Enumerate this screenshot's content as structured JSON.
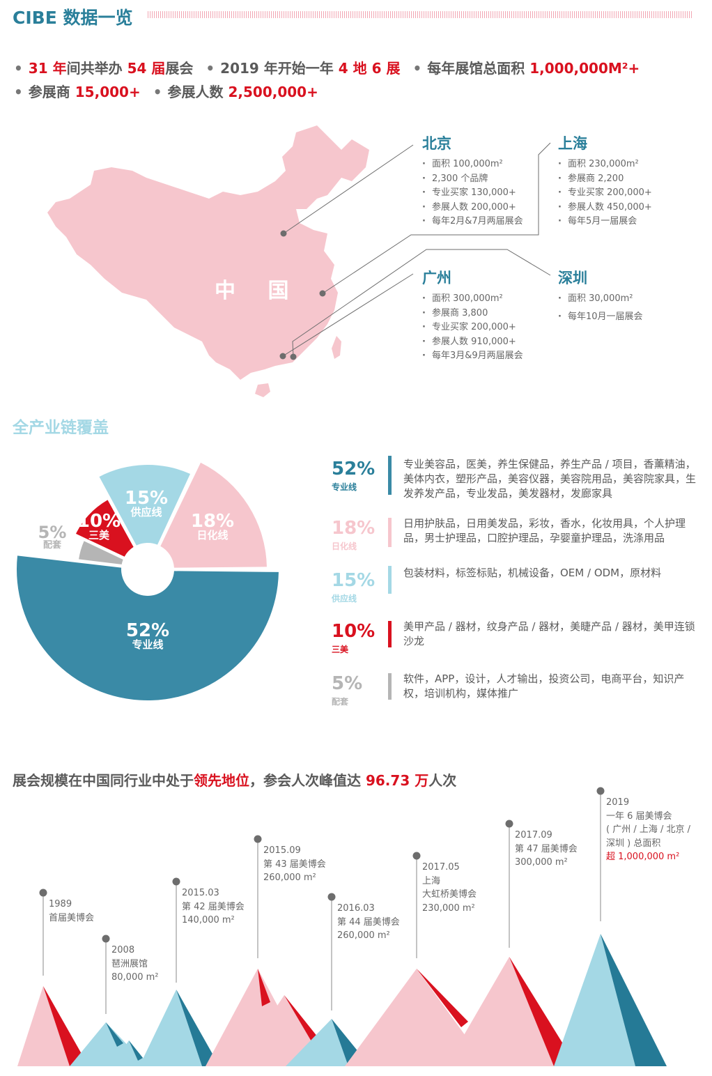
{
  "header": {
    "title": "CIBE 数据一览"
  },
  "colors": {
    "teal": "#2a7f9a",
    "pro": "#3a8aa6",
    "pink": "#f6c6cd",
    "lightblue": "#a4d8e5",
    "red": "#d9111f",
    "gray": "#b5b5b5",
    "darkteal": "#257a96"
  },
  "stats": {
    "line1": [
      [
        {
          "t": "31 年",
          "red": true
        },
        {
          "t": "间共举办 "
        },
        {
          "t": "54 届",
          "red": true
        },
        {
          "t": "展会"
        }
      ],
      [
        {
          "t": "2019 年开始一年 "
        },
        {
          "t": "4 地 6 展",
          "red": true
        }
      ],
      [
        {
          "t": "每年展馆总面积 "
        },
        {
          "t": "1,000,000M²+",
          "red": true
        }
      ]
    ],
    "line2": [
      [
        {
          "t": "参展商 "
        },
        {
          "t": "15,000+",
          "red": true
        }
      ],
      [
        {
          "t": "参展人数 "
        },
        {
          "t": "2,500,000+",
          "red": true
        }
      ]
    ]
  },
  "map": {
    "country_label": "中 国",
    "cities": [
      {
        "name": "北京",
        "items": [
          "面积 100,000m²",
          "2,300 个品牌",
          "专业买家 130,000+",
          "参展人数 200,000+",
          "每年2月&7月两届展会"
        ]
      },
      {
        "name": "上海",
        "items": [
          "面积 230,000m²",
          "参展商 2,200",
          "专业买家 200,000+",
          "参展人数 450,000+",
          "每年5月一届展会"
        ]
      },
      {
        "name": "广州",
        "items": [
          "面积 300,000m²",
          "参展商 3,800",
          "专业买家 200,000+",
          "参展人数 910,000+",
          "每年3月&9月两届展会"
        ]
      },
      {
        "name": "深圳",
        "items": [
          "面积 30,000m²",
          "每年10月一届展会"
        ]
      }
    ]
  },
  "section2": {
    "title": "全产业链覆盖"
  },
  "chart_data": {
    "type": "pie",
    "title": "",
    "slices": [
      {
        "name": "专业线",
        "value": 52,
        "label": "52%",
        "color": "#3a8aa6",
        "desc": "专业美容品，医美，养生保健品，养生产品 / 项目，香薰精油，美体内衣，塑形产品，美容仪器，美容院用品，美容院家具，生发养发产品，专业发品，美发器材，发廊家具"
      },
      {
        "name": "配套",
        "value": 5,
        "label": "5%",
        "color": "#b5b5b5",
        "desc": "软件，APP，设计，人才输出，投资公司，电商平台，知识产权，培训机构，媒体推广"
      },
      {
        "name": "三美",
        "value": 10,
        "label": "10%",
        "color": "#d9111f",
        "desc": "美甲产品 / 器材，纹身产品 / 器材，美睫产品 / 器材，美甲连锁沙龙"
      },
      {
        "name": "供应线",
        "value": 15,
        "label": "15%",
        "color": "#a4d8e5",
        "desc": "包装材料，标签标贴，机械设备，OEM / ODM，原材料"
      },
      {
        "name": "日化线",
        "value": 18,
        "label": "18%",
        "color": "#f6c6cd",
        "desc": "日用护肤品，日用美发品，彩妆，香水，化妆用具，个人护理品，男士护理品，口腔护理品，孕婴童护理品，洗涤用品"
      }
    ],
    "legend_order": [
      0,
      4,
      3,
      2,
      1
    ]
  },
  "section3": {
    "title": [
      {
        "t": "展会规模在中国同行业中处于"
      },
      {
        "t": "领先地位",
        "red": true
      },
      {
        "t": "，参会人次峰值达 "
      },
      {
        "t": "96.73 万",
        "red": true
      },
      {
        "t": "人次"
      }
    ]
  },
  "timeline": [
    {
      "lines": [
        {
          "t": "1989"
        },
        {
          "t": "首届美博会"
        }
      ]
    },
    {
      "lines": [
        {
          "t": "2008"
        },
        {
          "t": "琶洲展馆"
        },
        {
          "t": "80,000 m²"
        }
      ]
    },
    {
      "lines": [
        {
          "t": "2015.03"
        },
        {
          "t": "第 42 届美博会"
        },
        {
          "t": "140,000 m²"
        }
      ]
    },
    {
      "lines": [
        {
          "t": "2015.09"
        },
        {
          "t": "第 43 届美博会"
        },
        {
          "t": "260,000 m²"
        }
      ]
    },
    {
      "lines": [
        {
          "t": "2016.03"
        },
        {
          "t": "第 44 届美博会"
        },
        {
          "t": "260,000 m²"
        }
      ]
    },
    {
      "lines": [
        {
          "t": "2017.05"
        },
        {
          "t": "上海"
        },
        {
          "t": "大虹桥美博会"
        },
        {
          "t": "230,000 m²"
        }
      ]
    },
    {
      "lines": [
        {
          "t": "2017.09"
        },
        {
          "t": "第 47 届美博会"
        },
        {
          "t": "300,000 m²"
        }
      ]
    },
    {
      "lines": [
        {
          "t": "2019"
        },
        {
          "t": "一年 6 届美博会"
        },
        {
          "t": "( 广州 / 上海 / 北京 /"
        },
        {
          "t": "深圳 ) 总面积"
        },
        {
          "t": "超 1,000,000 m²",
          "red": true
        }
      ]
    }
  ]
}
